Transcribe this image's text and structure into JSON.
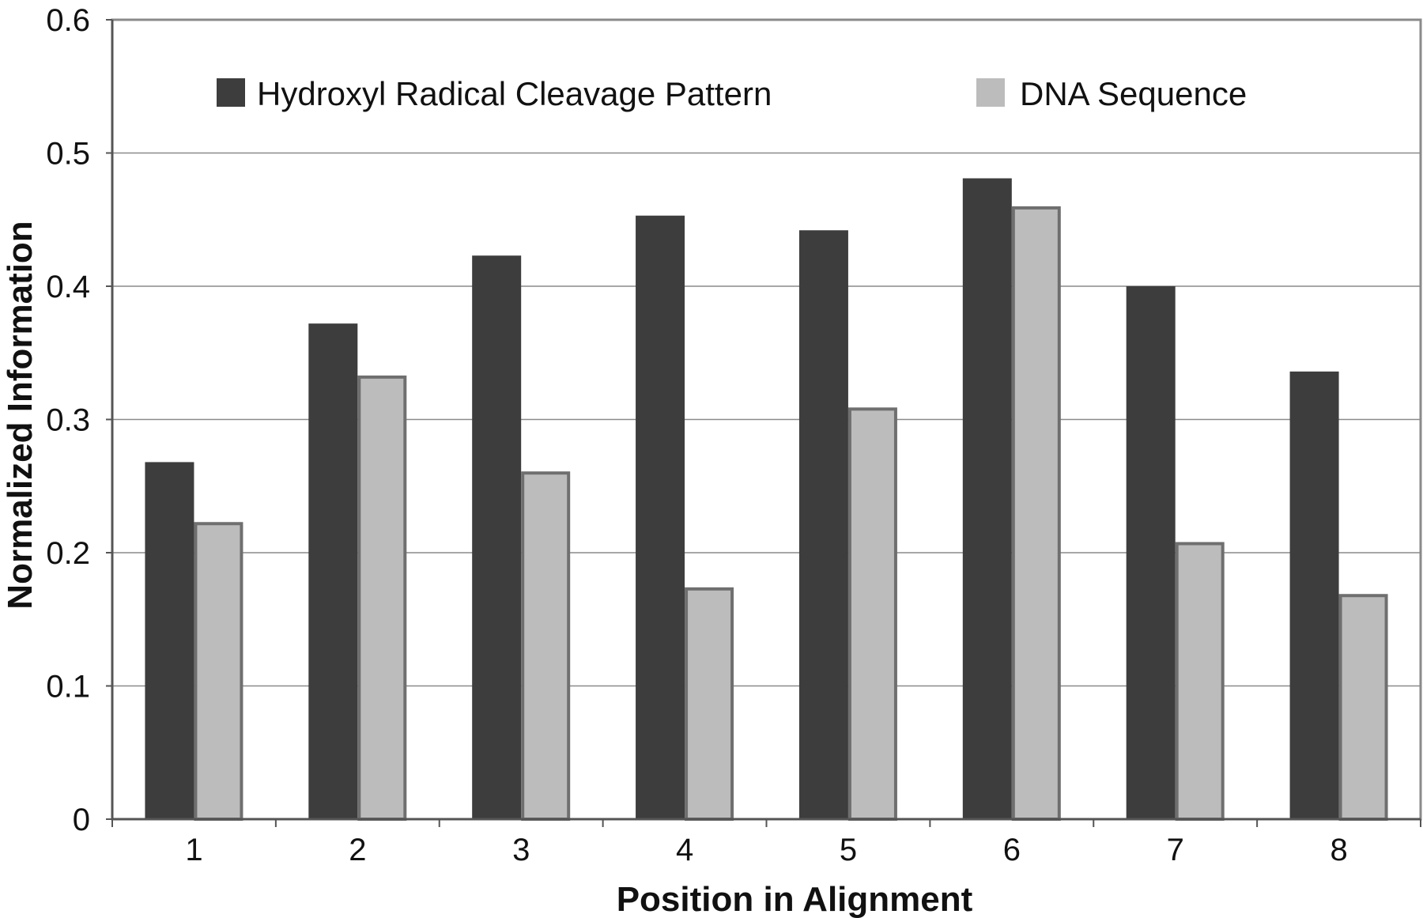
{
  "chart_data": {
    "type": "bar",
    "title": "",
    "xlabel": "Position in Alignment",
    "ylabel": "Normalized Information",
    "categories": [
      "1",
      "2",
      "3",
      "4",
      "5",
      "6",
      "7",
      "8"
    ],
    "series": [
      {
        "name": "Hydroxyl Radical Cleavage Pattern",
        "color": "#3d3d3d",
        "values": [
          0.268,
          0.372,
          0.423,
          0.453,
          0.442,
          0.481,
          0.4,
          0.336
        ]
      },
      {
        "name": "DNA Sequence",
        "color": "#bcbcbc",
        "stroke": "#6f6f6f",
        "values": [
          0.223,
          0.333,
          0.261,
          0.174,
          0.309,
          0.46,
          0.208,
          0.169
        ]
      }
    ],
    "ylim": [
      0,
      0.6
    ],
    "yticks": [
      "0",
      "0.1",
      "0.2",
      "0.3",
      "0.4",
      "0.5",
      "0.6"
    ],
    "grid": true,
    "legend_position": "top"
  }
}
